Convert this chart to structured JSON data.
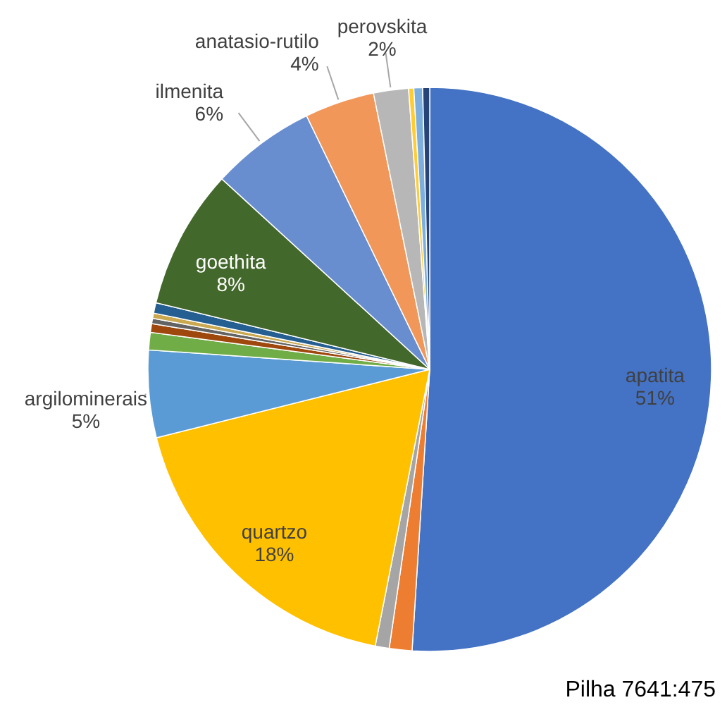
{
  "chart_data": {
    "type": "pie",
    "categories": [
      "apatita",
      null,
      null,
      "quartzo",
      "argilominerais",
      null,
      null,
      null,
      null,
      null,
      "goethita",
      "ilmenita",
      "anatasio-rutilo",
      "perovskita",
      null,
      null,
      null
    ],
    "values": [
      51,
      1.3,
      0.8,
      18,
      5,
      1,
      0.5,
      0.3,
      0.3,
      0.6,
      8,
      6,
      4,
      2,
      0.3,
      0.5,
      0.4
    ],
    "value_labels": [
      "51%",
      null,
      null,
      "18%",
      "5%",
      null,
      null,
      null,
      null,
      null,
      "8%",
      "6%",
      "4%",
      "2%",
      null,
      null,
      null
    ],
    "colors": [
      "#4472c4",
      "#ed7d31",
      "#a5a5a5",
      "#ffc000",
      "#5b9bd5",
      "#70ad47",
      "#9e480e",
      "#636363",
      "#c9a84f",
      "#255e91",
      "#43682b",
      "#698ed0",
      "#f1975a",
      "#b7b7b7",
      "#ffcd33",
      "#7cafdd",
      "#264478"
    ],
    "legend": false,
    "annotations": [
      "Pilha 7641:475"
    ]
  }
}
